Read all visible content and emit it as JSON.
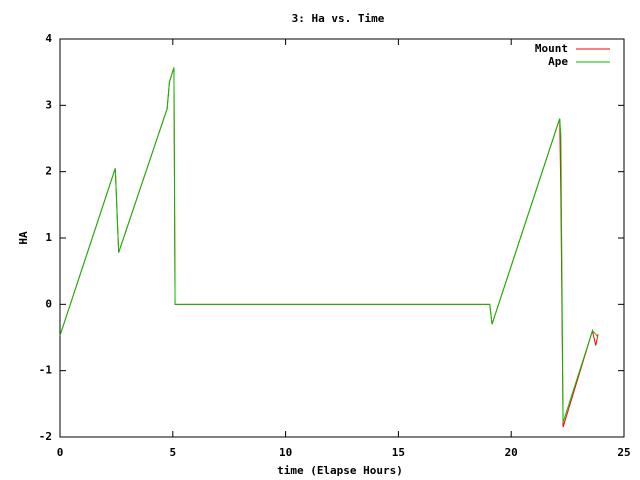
{
  "chart_data": {
    "type": "line",
    "title": "3: Ha vs. Time",
    "x_label": "time (Elapse Hours)",
    "y_label": "HA",
    "x": [
      0,
      2.45,
      2.6,
      4.75,
      4.85,
      5.05,
      5.1,
      19.05,
      19.15,
      22.15,
      22.2,
      22.3,
      23.6,
      23.75,
      23.85
    ],
    "series": [
      {
        "name": "Mount",
        "color": "#ff0000",
        "values": [
          -0.47,
          2.05,
          0.78,
          2.95,
          3.35,
          3.57,
          0,
          0,
          -0.3,
          2.8,
          1.65,
          -1.85,
          -0.4,
          -0.62,
          -0.45
        ]
      },
      {
        "name": "Ape",
        "color": "#00c000",
        "values": [
          -0.47,
          2.05,
          0.78,
          2.95,
          3.35,
          3.57,
          0,
          0,
          -0.3,
          2.8,
          2.55,
          -1.78,
          -0.4,
          -0.45,
          -0.5
        ]
      }
    ],
    "xlim": [
      0,
      25
    ],
    "xticks": [
      0,
      5,
      10,
      15,
      20,
      25
    ],
    "ylim": [
      -2,
      4
    ],
    "yticks": [
      -2,
      -1,
      0,
      1,
      2,
      3,
      4
    ],
    "legend": "top-right",
    "grid": false
  }
}
